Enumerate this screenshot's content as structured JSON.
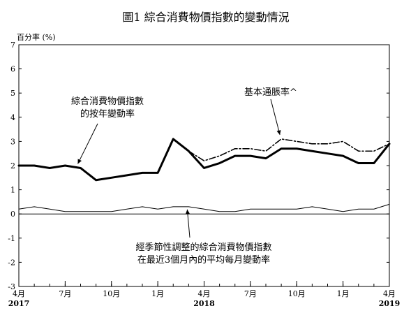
{
  "chart_data": {
    "type": "line",
    "title": "圖1  綜合消費物價指數的變動情況",
    "ylabel": "百分率 (%)",
    "ylim": [
      -3,
      7
    ],
    "yticks": [
      "7",
      "6",
      "5",
      "4",
      "3",
      "2",
      "1",
      "0",
      "-1",
      "-2",
      "-3"
    ],
    "x_tick_labels": [
      {
        "month": "4月",
        "year": "2017"
      },
      {
        "month": "7月",
        "year": ""
      },
      {
        "month": "10月",
        "year": ""
      },
      {
        "month": "1月",
        "year": ""
      },
      {
        "month": "4月",
        "year": "2018"
      },
      {
        "month": "7月",
        "year": ""
      },
      {
        "month": "10月",
        "year": ""
      },
      {
        "month": "1月",
        "year": ""
      },
      {
        "month": "4月",
        "year": "2019"
      }
    ],
    "x": [
      "2017-04",
      "2017-05",
      "2017-06",
      "2017-07",
      "2017-08",
      "2017-09",
      "2017-10",
      "2017-11",
      "2017-12",
      "2018-01",
      "2018-02",
      "2018-03",
      "2018-04",
      "2018-05",
      "2018-06",
      "2018-07",
      "2018-08",
      "2018-09",
      "2018-10",
      "2018-11",
      "2018-12",
      "2019-01",
      "2019-02",
      "2019-03",
      "2019-04"
    ],
    "series": [
      {
        "name": "綜合消費物價指數的按年變動率",
        "style": "thick-solid",
        "color": "#000000",
        "values": [
          2.0,
          2.0,
          1.9,
          2.0,
          1.9,
          1.4,
          1.5,
          1.6,
          1.7,
          1.7,
          3.1,
          2.6,
          1.9,
          2.1,
          2.4,
          2.4,
          2.3,
          2.7,
          2.7,
          2.6,
          2.5,
          2.4,
          2.1,
          2.1,
          2.9
        ]
      },
      {
        "name": "基本通脹率^",
        "style": "dash-dot",
        "color": "#000000",
        "values": [
          null,
          null,
          null,
          null,
          null,
          null,
          null,
          null,
          null,
          null,
          null,
          2.6,
          2.2,
          2.4,
          2.7,
          2.7,
          2.6,
          3.1,
          3.0,
          2.9,
          2.9,
          3.0,
          2.6,
          2.6,
          2.9
        ]
      },
      {
        "name": "經季節性調整的綜合消費物價指數在最近3個月內的平均每月變動率",
        "style": "thin-solid",
        "color": "#000000",
        "values": [
          0.2,
          0.3,
          0.2,
          0.1,
          0.1,
          0.1,
          0.1,
          0.2,
          0.3,
          0.2,
          0.3,
          0.3,
          0.2,
          0.1,
          0.1,
          0.2,
          0.2,
          0.2,
          0.2,
          0.3,
          0.2,
          0.1,
          0.2,
          0.2,
          0.4
        ]
      }
    ],
    "annotations": [
      {
        "lines": [
          "綜合消費物價指數",
          "的按年變動率"
        ],
        "series": 0
      },
      {
        "lines": [
          "基本通脹率^"
        ],
        "series": 1
      },
      {
        "lines": [
          "經季節性調整的綜合消費物價指數",
          "在最近3個月內的平均每月變動率"
        ],
        "series": 2
      }
    ],
    "grid": false,
    "legend": "annotations"
  }
}
